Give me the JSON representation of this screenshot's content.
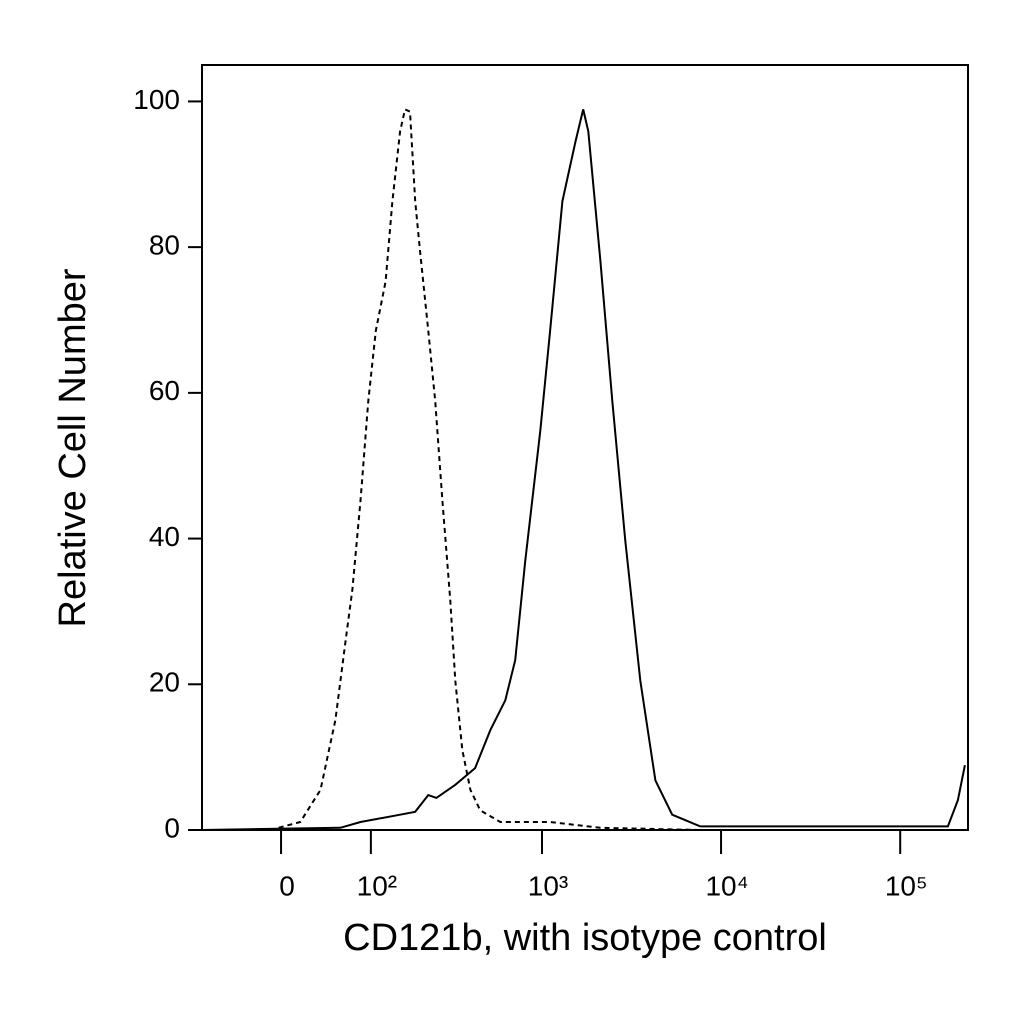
{
  "chart_data": {
    "type": "line",
    "xlabel": "CD121b, with isotype control",
    "ylabel": "Relative Cell Number",
    "xscale": "asinh",
    "xscale_cofactor": 70,
    "xlim": [
      -84,
      239000
    ],
    "xticks": [
      0,
      {
        "value": 100,
        "label": "10²"
      },
      {
        "value": 1000,
        "label": "10³"
      },
      {
        "value": 10000,
        "label": "10⁴"
      },
      {
        "value": 100000,
        "label": "10⁵"
      }
    ],
    "ylim": [
      0,
      105
    ],
    "yticks": [
      0,
      20,
      40,
      60,
      80,
      100
    ],
    "series": [
      {
        "color": "#000000",
        "linestyle": "dashed",
        "x": [
          -10,
          17.5,
          37,
          53,
          65,
          73.5,
          84.5,
          96,
          108,
          125,
          138,
          154,
          165,
          177,
          190,
          203,
          227,
          249,
          274,
          304,
          325,
          356,
          396,
          450,
          584,
          1110,
          2120,
          7660,
          215000
        ],
        "values": [
          0,
          1.1,
          5.5,
          15.1,
          26,
          32.9,
          45.2,
          58.9,
          68.5,
          75.3,
          86.3,
          95.9,
          98.9,
          98.6,
          86.3,
          79.5,
          68.5,
          58.9,
          45.2,
          31.5,
          20.5,
          11,
          5.5,
          2.7,
          1.1,
          1.1,
          0.3,
          0,
          0
        ]
      },
      {
        "color": "#000000",
        "linestyle": "solid",
        "x": [
          -84,
          58.6,
          84.5,
          154,
          190,
          227,
          253,
          325,
          421,
          513,
          623,
          708,
          806,
          979,
          1110,
          1300,
          1540,
          1700,
          1815,
          2120,
          2470,
          2920,
          3540,
          4300,
          5340,
          7660,
          12800,
          100000,
          184600,
          210000,
          229600
        ],
        "values": [
          0,
          0.3,
          1.1,
          2.1,
          2.5,
          4.8,
          4.4,
          6.2,
          8.5,
          13.7,
          17.8,
          23.3,
          37,
          54.8,
          68.5,
          86.3,
          94.5,
          98.9,
          95.9,
          78.1,
          58.9,
          39.7,
          20.5,
          6.8,
          2.1,
          0.5,
          0.5,
          0.5,
          0.5,
          4.1,
          8.9
        ]
      }
    ]
  }
}
